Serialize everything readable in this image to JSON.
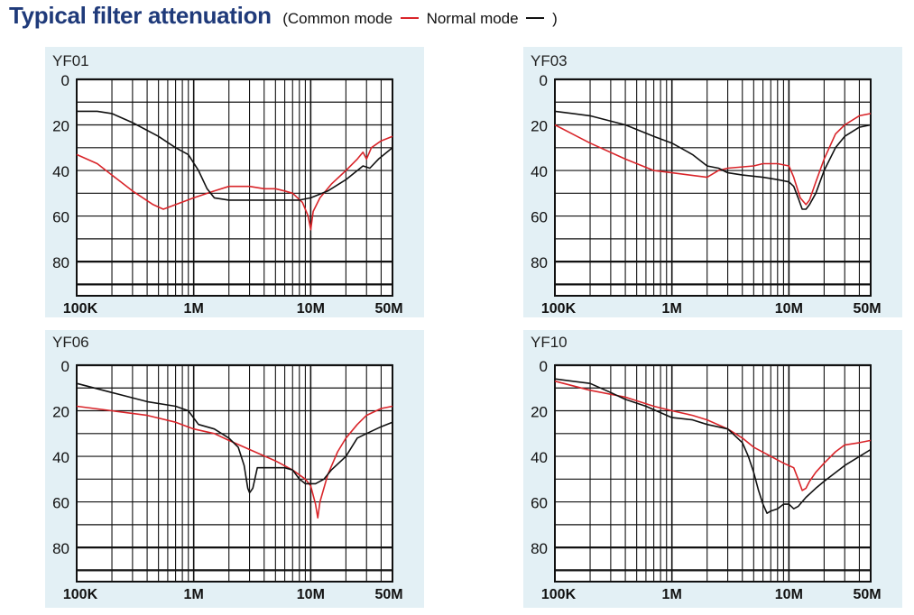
{
  "header": {
    "title": "Typical filter attenuation",
    "legend_open": "(Common mode",
    "legend_mid": "Normal mode",
    "legend_close": ")"
  },
  "colors": {
    "common_mode": "#d9252a",
    "normal_mode": "#111111",
    "panel_bg": "#e3f0f5",
    "title": "#1f3a7a"
  },
  "chart_data": [
    {
      "type": "line",
      "title": "YF01",
      "x_scale": "log",
      "xlim": [
        100000,
        50000000
      ],
      "ylim": [
        0,
        95
      ],
      "y_inverted": true,
      "x_ticks": [
        {
          "v": 100000,
          "label": "100K"
        },
        {
          "v": 1000000,
          "label": "1M"
        },
        {
          "v": 10000000,
          "label": "10M"
        },
        {
          "v": 50000000,
          "label": "50M"
        }
      ],
      "y_ticks": [
        {
          "v": 0,
          "label": "0"
        },
        {
          "v": 20,
          "label": "20"
        },
        {
          "v": 40,
          "label": "40"
        },
        {
          "v": 60,
          "label": "60"
        },
        {
          "v": 80,
          "label": "80"
        }
      ],
      "series": [
        {
          "mode": "common",
          "points": [
            [
              100000,
              33
            ],
            [
              150000,
              37
            ],
            [
              200000,
              42
            ],
            [
              300000,
              49
            ],
            [
              450000,
              55
            ],
            [
              550000,
              57
            ],
            [
              700000,
              55
            ],
            [
              1000000,
              52
            ],
            [
              1500000,
              49
            ],
            [
              2000000,
              47
            ],
            [
              3000000,
              47
            ],
            [
              4000000,
              48
            ],
            [
              5000000,
              48
            ],
            [
              6000000,
              49
            ],
            [
              7000000,
              50
            ],
            [
              8500000,
              54
            ],
            [
              9500000,
              60
            ],
            [
              10000000,
              66
            ],
            [
              10500000,
              58
            ],
            [
              12000000,
              52
            ],
            [
              15000000,
              46
            ],
            [
              20000000,
              40
            ],
            [
              25000000,
              35
            ],
            [
              28000000,
              32
            ],
            [
              30000000,
              35
            ],
            [
              33000000,
              30
            ],
            [
              40000000,
              27
            ],
            [
              50000000,
              25
            ]
          ]
        },
        {
          "mode": "normal",
          "points": [
            [
              100000,
              14
            ],
            [
              150000,
              14
            ],
            [
              200000,
              15
            ],
            [
              300000,
              19
            ],
            [
              500000,
              25
            ],
            [
              700000,
              30
            ],
            [
              900000,
              33
            ],
            [
              1100000,
              40
            ],
            [
              1300000,
              48
            ],
            [
              1500000,
              52
            ],
            [
              2000000,
              53
            ],
            [
              5000000,
              53
            ],
            [
              8000000,
              53
            ],
            [
              10000000,
              52
            ],
            [
              14000000,
              49
            ],
            [
              20000000,
              44
            ],
            [
              25000000,
              40
            ],
            [
              28000000,
              38
            ],
            [
              32000000,
              39
            ],
            [
              38000000,
              35
            ],
            [
              50000000,
              30
            ]
          ]
        }
      ]
    },
    {
      "type": "line",
      "title": "YF03",
      "x_scale": "log",
      "xlim": [
        100000,
        50000000
      ],
      "ylim": [
        0,
        95
      ],
      "y_inverted": true,
      "x_ticks": [
        {
          "v": 100000,
          "label": "100K"
        },
        {
          "v": 1000000,
          "label": "1M"
        },
        {
          "v": 10000000,
          "label": "10M"
        },
        {
          "v": 50000000,
          "label": "50M"
        }
      ],
      "y_ticks": [
        {
          "v": 0,
          "label": "0"
        },
        {
          "v": 20,
          "label": "20"
        },
        {
          "v": 40,
          "label": "40"
        },
        {
          "v": 60,
          "label": "60"
        },
        {
          "v": 80,
          "label": "80"
        }
      ],
      "series": [
        {
          "mode": "common",
          "points": [
            [
              100000,
              20
            ],
            [
              200000,
              28
            ],
            [
              400000,
              35
            ],
            [
              700000,
              40
            ],
            [
              1000000,
              41
            ],
            [
              2000000,
              43
            ],
            [
              2500000,
              40
            ],
            [
              3000000,
              39
            ],
            [
              5000000,
              38
            ],
            [
              6000000,
              37
            ],
            [
              8000000,
              37
            ],
            [
              10000000,
              38
            ],
            [
              11000000,
              43
            ],
            [
              12500000,
              52
            ],
            [
              14000000,
              55
            ],
            [
              15000000,
              53
            ],
            [
              17000000,
              45
            ],
            [
              20000000,
              35
            ],
            [
              25000000,
              24
            ],
            [
              30000000,
              20
            ],
            [
              40000000,
              16
            ],
            [
              50000000,
              15
            ]
          ]
        },
        {
          "mode": "normal",
          "points": [
            [
              100000,
              14
            ],
            [
              200000,
              16
            ],
            [
              400000,
              20
            ],
            [
              700000,
              25
            ],
            [
              1000000,
              28
            ],
            [
              1500000,
              33
            ],
            [
              2000000,
              38
            ],
            [
              2500000,
              39
            ],
            [
              3000000,
              41
            ],
            [
              4000000,
              42
            ],
            [
              6000000,
              43
            ],
            [
              8000000,
              44
            ],
            [
              10000000,
              45
            ],
            [
              11000000,
              47
            ],
            [
              12000000,
              52
            ],
            [
              13000000,
              57
            ],
            [
              14000000,
              57
            ],
            [
              15000000,
              55
            ],
            [
              17000000,
              50
            ],
            [
              20000000,
              40
            ],
            [
              25000000,
              30
            ],
            [
              30000000,
              25
            ],
            [
              40000000,
              21
            ],
            [
              50000000,
              20
            ]
          ]
        }
      ]
    },
    {
      "type": "line",
      "title": "YF06",
      "x_scale": "log",
      "xlim": [
        100000,
        50000000
      ],
      "ylim": [
        0,
        95
      ],
      "y_inverted": true,
      "x_ticks": [
        {
          "v": 100000,
          "label": "100K"
        },
        {
          "v": 1000000,
          "label": "1M"
        },
        {
          "v": 10000000,
          "label": "10M"
        },
        {
          "v": 50000000,
          "label": "50M"
        }
      ],
      "y_ticks": [
        {
          "v": 0,
          "label": "0"
        },
        {
          "v": 20,
          "label": "20"
        },
        {
          "v": 40,
          "label": "40"
        },
        {
          "v": 60,
          "label": "60"
        },
        {
          "v": 80,
          "label": "80"
        }
      ],
      "series": [
        {
          "mode": "common",
          "points": [
            [
              100000,
              18
            ],
            [
              200000,
              20
            ],
            [
              400000,
              22
            ],
            [
              700000,
              25
            ],
            [
              1000000,
              28
            ],
            [
              1500000,
              30
            ],
            [
              2000000,
              33
            ],
            [
              3000000,
              37
            ],
            [
              5000000,
              42
            ],
            [
              7000000,
              46
            ],
            [
              9000000,
              50
            ],
            [
              10000000,
              53
            ],
            [
              11000000,
              61
            ],
            [
              11500000,
              67
            ],
            [
              12000000,
              60
            ],
            [
              14000000,
              48
            ],
            [
              17000000,
              38
            ],
            [
              20000000,
              32
            ],
            [
              25000000,
              26
            ],
            [
              30000000,
              22
            ],
            [
              40000000,
              19
            ],
            [
              50000000,
              18
            ]
          ]
        },
        {
          "mode": "normal",
          "points": [
            [
              100000,
              8
            ],
            [
              200000,
              12
            ],
            [
              400000,
              16
            ],
            [
              700000,
              18
            ],
            [
              900000,
              20
            ],
            [
              1100000,
              26
            ],
            [
              1500000,
              28
            ],
            [
              2000000,
              32
            ],
            [
              2400000,
              36
            ],
            [
              2700000,
              44
            ],
            [
              2900000,
              54
            ],
            [
              3000000,
              56
            ],
            [
              3200000,
              54
            ],
            [
              3500000,
              45
            ],
            [
              4000000,
              45
            ],
            [
              5000000,
              45
            ],
            [
              6000000,
              45
            ],
            [
              7000000,
              46
            ],
            [
              8000000,
              50
            ],
            [
              9000000,
              52
            ],
            [
              11000000,
              52
            ],
            [
              13000000,
              50
            ],
            [
              15000000,
              46
            ],
            [
              20000000,
              40
            ],
            [
              25000000,
              32
            ],
            [
              30000000,
              30
            ],
            [
              40000000,
              27
            ],
            [
              50000000,
              25
            ]
          ]
        }
      ]
    },
    {
      "type": "line",
      "title": "YF10",
      "x_scale": "log",
      "xlim": [
        100000,
        50000000
      ],
      "ylim": [
        0,
        95
      ],
      "y_inverted": true,
      "x_ticks": [
        {
          "v": 100000,
          "label": "100K"
        },
        {
          "v": 1000000,
          "label": "1M"
        },
        {
          "v": 10000000,
          "label": "10M"
        },
        {
          "v": 50000000,
          "label": "50M"
        }
      ],
      "y_ticks": [
        {
          "v": 0,
          "label": "0"
        },
        {
          "v": 20,
          "label": "20"
        },
        {
          "v": 40,
          "label": "40"
        },
        {
          "v": 60,
          "label": "60"
        },
        {
          "v": 80,
          "label": "80"
        }
      ],
      "series": [
        {
          "mode": "common",
          "points": [
            [
              100000,
              7
            ],
            [
              200000,
              11
            ],
            [
              400000,
              14
            ],
            [
              700000,
              18
            ],
            [
              1000000,
              20
            ],
            [
              1500000,
              22
            ],
            [
              2000000,
              24
            ],
            [
              3000000,
              28
            ],
            [
              4000000,
              32
            ],
            [
              5000000,
              36
            ],
            [
              7000000,
              40
            ],
            [
              9000000,
              43
            ],
            [
              11000000,
              45
            ],
            [
              12000000,
              50
            ],
            [
              13000000,
              55
            ],
            [
              14000000,
              54
            ],
            [
              15000000,
              51
            ],
            [
              17000000,
              47
            ],
            [
              20000000,
              43
            ],
            [
              25000000,
              38
            ],
            [
              30000000,
              35
            ],
            [
              40000000,
              34
            ],
            [
              50000000,
              33
            ]
          ]
        },
        {
          "mode": "normal",
          "points": [
            [
              100000,
              6
            ],
            [
              200000,
              8
            ],
            [
              300000,
              12
            ],
            [
              400000,
              15
            ],
            [
              600000,
              18
            ],
            [
              1000000,
              23
            ],
            [
              1500000,
              24
            ],
            [
              2000000,
              26
            ],
            [
              3000000,
              28
            ],
            [
              4000000,
              34
            ],
            [
              4500000,
              40
            ],
            [
              5000000,
              47
            ],
            [
              5500000,
              55
            ],
            [
              6000000,
              61
            ],
            [
              6500000,
              65
            ],
            [
              7000000,
              64
            ],
            [
              8000000,
              63
            ],
            [
              9000000,
              61
            ],
            [
              10000000,
              61
            ],
            [
              11000000,
              63
            ],
            [
              12000000,
              62
            ],
            [
              14000000,
              58
            ],
            [
              17000000,
              54
            ],
            [
              20000000,
              51
            ],
            [
              30000000,
              44
            ],
            [
              50000000,
              37
            ]
          ]
        }
      ]
    }
  ]
}
